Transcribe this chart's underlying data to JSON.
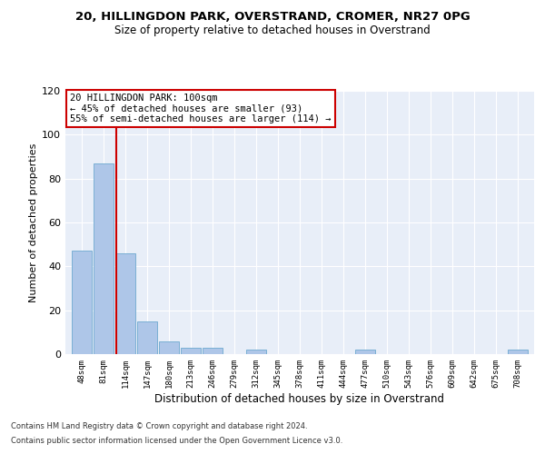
{
  "title1": "20, HILLINGDON PARK, OVERSTRAND, CROMER, NR27 0PG",
  "title2": "Size of property relative to detached houses in Overstrand",
  "xlabel": "Distribution of detached houses by size in Overstrand",
  "ylabel": "Number of detached properties",
  "bar_color": "#aec6e8",
  "bar_edge_color": "#7aafd4",
  "bg_color": "#e8eef8",
  "annotation_box_text": "20 HILLINGDON PARK: 100sqm\n← 45% of detached houses are smaller (93)\n55% of semi-detached houses are larger (114) →",
  "annotation_box_color": "#ffffff",
  "annotation_box_edge_color": "#cc0000",
  "vline_x": 100,
  "vline_color": "#cc0000",
  "categories": [
    "48sqm",
    "81sqm",
    "114sqm",
    "147sqm",
    "180sqm",
    "213sqm",
    "246sqm",
    "279sqm",
    "312sqm",
    "345sqm",
    "378sqm",
    "411sqm",
    "444sqm",
    "477sqm",
    "510sqm",
    "543sqm",
    "576sqm",
    "609sqm",
    "642sqm",
    "675sqm",
    "708sqm"
  ],
  "bin_edges": [
    48,
    81,
    114,
    147,
    180,
    213,
    246,
    279,
    312,
    345,
    378,
    411,
    444,
    477,
    510,
    543,
    576,
    609,
    642,
    675,
    708
  ],
  "values": [
    47,
    87,
    46,
    15,
    6,
    3,
    3,
    0,
    2,
    0,
    0,
    0,
    0,
    2,
    0,
    0,
    0,
    0,
    0,
    0,
    2
  ],
  "ylim": [
    0,
    120
  ],
  "yticks": [
    0,
    20,
    40,
    60,
    80,
    100,
    120
  ],
  "footer1": "Contains HM Land Registry data © Crown copyright and database right 2024.",
  "footer2": "Contains public sector information licensed under the Open Government Licence v3.0."
}
